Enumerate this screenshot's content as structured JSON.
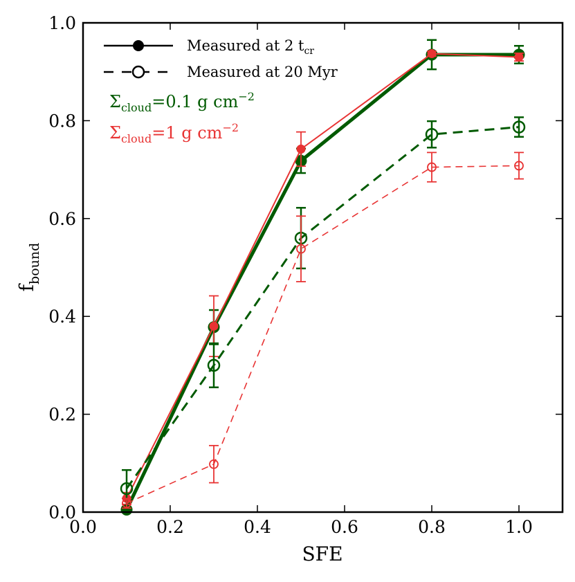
{
  "chart_data": {
    "type": "line",
    "xlabel": "SFE",
    "ylabel": {
      "main": "f",
      "sub": "bound"
    },
    "xlim": [
      0.0,
      1.1
    ],
    "ylim": [
      0.0,
      1.0
    ],
    "xticks": [
      "0.0",
      "0.2",
      "0.4",
      "0.6",
      "0.8",
      "1.0"
    ],
    "yticks": [
      "0.0",
      "0.2",
      "0.4",
      "0.6",
      "0.8",
      "1.0"
    ],
    "grid": false,
    "legend": {
      "position": "top-left",
      "entries": [
        {
          "style": "solid-filled",
          "main": "Measured at 2 t",
          "sub": "cr"
        },
        {
          "style": "dashed-open",
          "main": "Measured at 20 Myr",
          "sub": ""
        }
      ]
    },
    "annotations": [
      {
        "color": "#005a00",
        "sym": "Σ",
        "sub": "cloud",
        "rest": "=0.1  g cm",
        "sup": "−2"
      },
      {
        "color": "#e83333",
        "sym": "Σ",
        "sub": "cloud",
        "rest": "=1  g cm",
        "sup": "−2"
      }
    ],
    "colors": {
      "green": "#005a00",
      "red": "#e83333",
      "axis": "#000000"
    },
    "series": [
      {
        "name": "Σcloud=0.1, Measured at 2 tcr",
        "color": "#005a00",
        "style": "solid",
        "marker": "filled",
        "width": 5,
        "msize": 8,
        "x": [
          0.1,
          0.3,
          0.5,
          0.8,
          1.0
        ],
        "y": [
          0.005,
          0.378,
          0.718,
          0.935,
          0.935
        ],
        "err": [
          0.005,
          0.035,
          0.025,
          0.03,
          0.018
        ]
      },
      {
        "name": "Σcloud=1, Measured at 2 tcr",
        "color": "#e83333",
        "style": "solid",
        "marker": "filled",
        "width": 2,
        "msize": 6,
        "x": [
          0.1,
          0.3,
          0.5,
          0.8,
          1.0
        ],
        "y": [
          0.028,
          0.38,
          0.742,
          0.937,
          0.93
        ],
        "err": [
          0.012,
          0.062,
          0.035,
          0.005,
          0.008
        ]
      },
      {
        "name": "Σcloud=0.1, Measured at 20 Myr",
        "color": "#005a00",
        "style": "dashed",
        "marker": "open",
        "width": 3,
        "msize": 8,
        "x": [
          0.1,
          0.3,
          0.5,
          0.8,
          1.0
        ],
        "y": [
          0.048,
          0.3,
          0.56,
          0.772,
          0.787
        ],
        "err": [
          0.038,
          0.045,
          0.062,
          0.027,
          0.02
        ]
      },
      {
        "name": "Σcloud=1, Measured at 20 Myr",
        "color": "#e83333",
        "style": "dashed",
        "marker": "open",
        "width": 1.6,
        "msize": 6,
        "x": [
          0.1,
          0.3,
          0.5,
          0.8,
          1.0
        ],
        "y": [
          0.018,
          0.098,
          0.538,
          0.705,
          0.708
        ],
        "err": [
          0.01,
          0.038,
          0.067,
          0.03,
          0.027
        ]
      }
    ]
  }
}
